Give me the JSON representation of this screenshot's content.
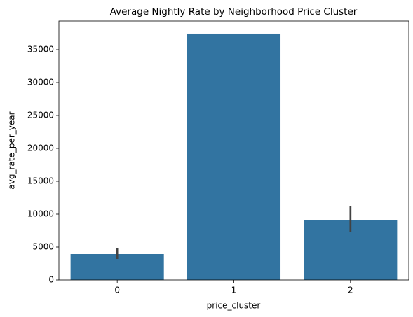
{
  "chart_data": {
    "type": "bar",
    "title": "Average Nightly Rate by Neighborhood Price Cluster",
    "x_label": "price_cluster",
    "y_label": "avg_rate_per_year",
    "categories": [
      "0",
      "1",
      "2"
    ],
    "values": [
      3936,
      37447,
      9043
    ],
    "ci": [
      [
        3191,
        4787
      ],
      null,
      [
        7340,
        11277
      ]
    ],
    "color": "#3274a1",
    "error_color": "#424242",
    "ylim": [
      0,
      39360
    ],
    "yticks": [
      0,
      5000,
      10000,
      15000,
      20000,
      25000,
      30000,
      35000
    ]
  }
}
